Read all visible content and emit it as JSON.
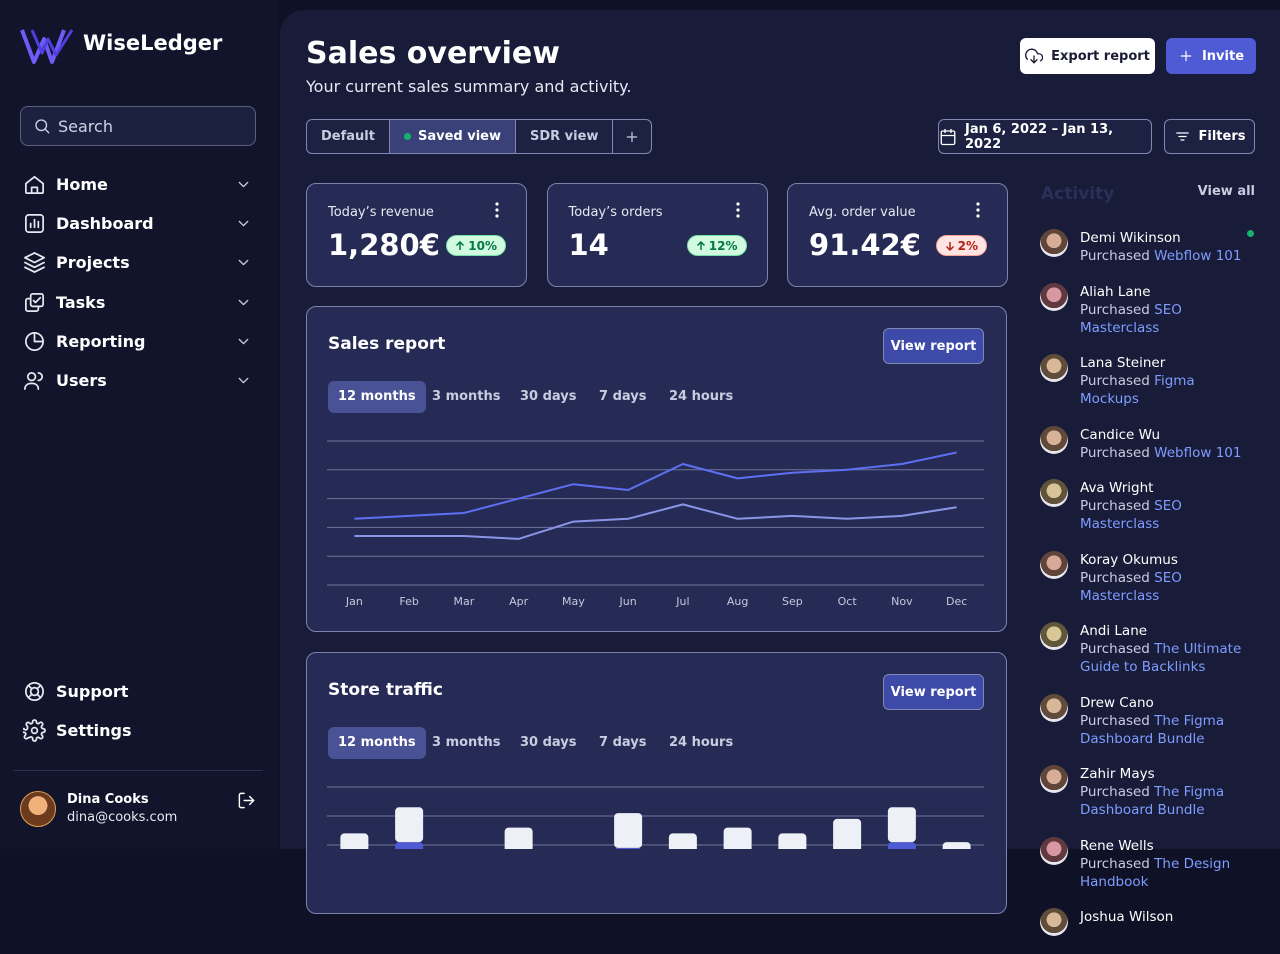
{
  "sidebar": {
    "brand": "WiseLedger",
    "search_placeholder": "Search",
    "nav": [
      "Home",
      "Dashboard",
      "Projects",
      "Tasks",
      "Reporting",
      "Users"
    ],
    "footer_nav": [
      "Support",
      "Settings"
    ],
    "user": {
      "name": "Dina Cooks",
      "email": "dina@cooks.com"
    }
  },
  "header": {
    "title": "Sales overview",
    "subtitle": "Your current sales summary and activity.",
    "export_button": "Export report",
    "invite_button": "Invite"
  },
  "view_tabs": [
    "Default",
    "Saved view",
    "SDR view"
  ],
  "date_range": "Jan 6, 2022 – Jan 13, 2022",
  "filters_button": "Filters",
  "stats": [
    {
      "label": "Today’s revenue",
      "value": "1,280€",
      "change": "10%",
      "direction": "up"
    },
    {
      "label": "Today’s orders",
      "value": "14",
      "change": "12%",
      "direction": "up"
    },
    {
      "label": "Avg. order value",
      "value": "91.42€",
      "change": "2%",
      "direction": "down"
    }
  ],
  "chart_data": [
    {
      "type": "line",
      "title": "Sales report",
      "button": "View report",
      "ranges": [
        "12 months",
        "3 months",
        "30 days",
        "7 days",
        "24 hours"
      ],
      "categories": [
        "Jan",
        "Feb",
        "Mar",
        "Apr",
        "May",
        "Jun",
        "Jul",
        "Aug",
        "Sep",
        "Oct",
        "Nov",
        "Dec"
      ],
      "series": [
        {
          "color": "#5f6ff2",
          "values": [
            2.3,
            2.4,
            2.5,
            3.0,
            3.5,
            3.3,
            4.2,
            3.7,
            3.9,
            4.0,
            4.2,
            4.6
          ]
        },
        {
          "color": "#8b95e8",
          "values": [
            1.7,
            1.7,
            1.7,
            1.6,
            2.2,
            2.3,
            2.8,
            2.3,
            2.4,
            2.3,
            2.4,
            2.7
          ]
        }
      ],
      "ylim": [
        0,
        5
      ],
      "yticks": [
        0,
        1,
        2,
        3,
        4,
        5
      ],
      "grid": true
    },
    {
      "type": "bar",
      "title": "Store traffic",
      "button": "View report",
      "ranges": [
        "12 months",
        "3 months",
        "30 days",
        "7 days",
        "24 hours"
      ],
      "series": [
        {
          "color": "#4f5bd5",
          "values": [
            null,
            3.1,
            null,
            null,
            null,
            2.9,
            null,
            null,
            null,
            null,
            3.1,
            null
          ]
        },
        {
          "color": "#eef0f7",
          "values": [
            3.4,
            1.2,
            null,
            3.6,
            null,
            1.2,
            3.4,
            3.6,
            3.4,
            3.9,
            1.2,
            3.1
          ]
        }
      ],
      "ylim": [
        0,
        5
      ],
      "yticks": [
        0,
        1,
        2,
        3,
        4,
        5
      ],
      "grid": true
    }
  ],
  "activity": {
    "title": "Activity",
    "view_all": "View all",
    "items": [
      {
        "name": "Demi Wikinson",
        "action": "Purchased",
        "item": "Webflow 101"
      },
      {
        "name": "Aliah Lane",
        "action": "Purchased",
        "item": "SEO Masterclass"
      },
      {
        "name": "Lana Steiner",
        "action": "Purchased",
        "item": "Figma Mockups"
      },
      {
        "name": "Candice Wu",
        "action": "Purchased",
        "item": "Webflow 101"
      },
      {
        "name": "Ava Wright",
        "action": "Purchased",
        "item": "SEO Masterclass"
      },
      {
        "name": "Koray Okumus",
        "action": "Purchased",
        "item": "SEO Masterclass"
      },
      {
        "name": "Andi Lane",
        "action": "Purchased",
        "item": "The Ultimate Guide to Backlinks"
      },
      {
        "name": "Drew Cano",
        "action": "Purchased",
        "item": "The Figma Dashboard Bundle"
      },
      {
        "name": "Zahir Mays",
        "action": "Purchased",
        "item": "The Figma Dashboard Bundle"
      },
      {
        "name": "Rene Wells",
        "action": "Purchased",
        "item": "The Design Handbook"
      },
      {
        "name": "Joshua Wilson"
      }
    ]
  }
}
